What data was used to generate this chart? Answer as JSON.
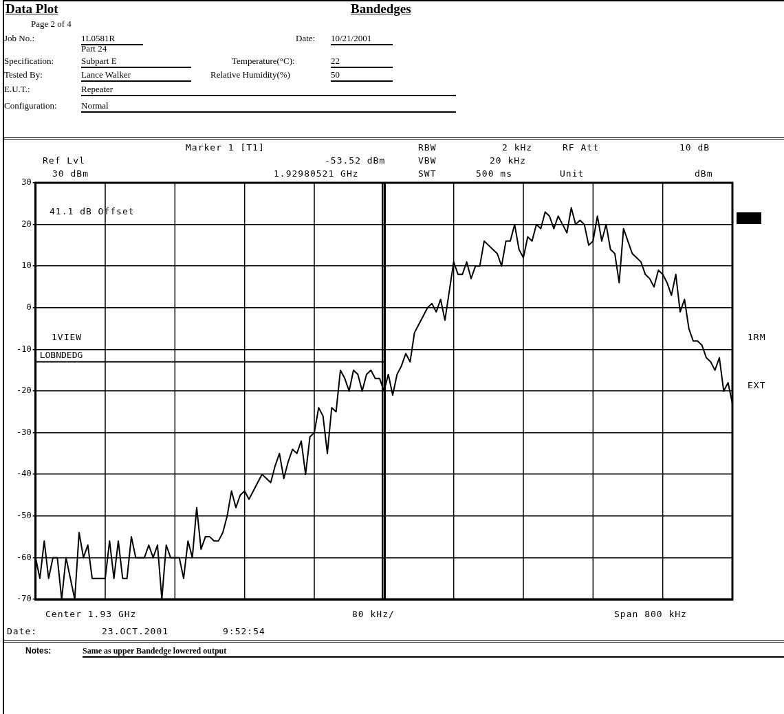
{
  "chart_data": {
    "type": "line",
    "title": "Data Plot",
    "subtitle": "Bandedges",
    "annotations": [
      "Page 2 of 4",
      "Job No.:",
      "1L0581R",
      "Date:",
      "10/21/2001",
      "Specification:",
      "Part 24",
      "Subpart E",
      "Temperature(°C):",
      "22",
      "Tested By:",
      "Lance Walker",
      "Relative Humidity(%)",
      "50",
      "E.U.T.:",
      "Repeater",
      "Configuration:",
      "Normal",
      "Marker 1 [T1]",
      "Ref Lvl",
      "-53.52 dBm",
      "30 dBm",
      "1.92980521 GHz",
      "RBW",
      "2 kHz",
      "VBW",
      "20 kHz",
      "SWT",
      "500 ms",
      "RF Att",
      "10 dB",
      "Unit",
      "dBm",
      "41.1 dB Offset",
      "1VIEW",
      "1RM",
      "EXT",
      "Center 1.93 GHz",
      "80 kHz/",
      "Span 800 kHz",
      "Date:",
      "23.OCT.2001",
      "9:52:54",
      "Notes:",
      "Same as upper Bandedge lowered output",
      {
        "text": "LOBNDEDG",
        "y": -13
      }
    ],
    "categories": [
      null,
      null,
      null,
      null,
      null,
      null,
      null,
      null,
      null,
      null,
      null,
      null,
      null,
      null,
      null,
      null,
      null,
      null,
      null,
      null,
      null,
      null,
      null,
      null,
      null,
      null,
      null,
      null,
      null,
      null,
      null,
      null,
      null,
      null,
      null,
      null,
      null,
      null,
      null,
      null,
      null,
      null,
      null,
      null,
      null,
      null,
      null,
      null,
      null,
      null,
      null,
      null,
      null,
      null,
      null,
      null,
      null,
      null,
      null,
      null,
      null,
      null,
      null,
      null,
      null,
      null,
      null,
      null,
      null,
      null,
      null,
      null,
      null,
      null,
      null,
      null,
      null,
      null,
      null,
      null,
      null,
      null,
      null,
      null,
      null,
      null,
      null,
      null,
      null,
      null,
      null,
      null,
      null,
      null,
      null,
      null,
      null,
      null,
      null,
      null,
      null,
      null,
      null,
      null,
      null,
      null,
      null,
      null,
      null,
      null,
      null,
      null,
      null,
      null,
      null,
      null,
      null,
      null,
      null,
      null,
      null,
      null,
      null,
      null,
      null,
      null,
      null,
      null,
      null,
      null,
      null,
      null,
      null,
      null,
      null,
      null,
      null,
      null,
      null,
      null,
      null,
      null,
      null,
      null,
      null,
      null,
      null,
      null,
      null,
      null,
      null,
      null,
      null,
      null,
      null,
      null,
      null,
      null,
      null,
      null,
      null
    ],
    "ylim": [
      -70,
      30
    ],
    "yticks": [
      -70,
      -60,
      -50,
      -40,
      -30,
      -20,
      -10,
      0,
      10,
      20,
      30
    ],
    "tick_labels": "y",
    "grid": true,
    "legend": false,
    "marker": "none",
    "line_style": "solid",
    "series": [
      {
        "color": "#000000",
        "values": [
          -60,
          -65,
          -56,
          -65,
          -60,
          -60,
          -70,
          -60,
          -65,
          -70,
          -54,
          -60,
          -57,
          -65,
          -65,
          -65,
          -65,
          -56,
          -65,
          -56,
          -65,
          -65,
          -55,
          -60,
          -60,
          -60,
          -57,
          -60,
          -57,
          -70,
          -57,
          -60,
          -60,
          -60,
          -65,
          -56,
          -60,
          -48,
          -58,
          -55,
          -55,
          -56,
          -56,
          -54,
          -50,
          -44,
          -48,
          -45,
          -44,
          -46,
          -44,
          -42,
          -40,
          -41,
          -42,
          -38,
          -35,
          -41,
          -37,
          -34,
          -35,
          -32,
          -40,
          -31,
          -30,
          -24,
          -26,
          -35,
          -24,
          -25,
          -15,
          -17,
          -20,
          -15,
          -16,
          -20,
          -16,
          -15,
          -17,
          -17,
          -20,
          -16,
          -21,
          -16,
          -14,
          -11,
          -13,
          -6,
          -4,
          -2,
          0,
          1,
          -1,
          2,
          -3,
          4,
          11,
          8,
          8,
          11,
          7,
          10,
          10,
          16,
          15,
          14,
          13,
          10,
          16,
          16,
          20,
          14,
          12,
          17,
          16,
          20,
          19,
          23,
          22,
          19,
          22,
          20,
          18,
          24,
          20,
          21,
          20,
          15,
          16,
          22,
          16,
          20,
          14,
          13,
          6,
          19,
          16,
          13,
          12,
          11,
          8,
          7,
          5,
          9,
          8,
          6,
          3,
          8,
          -1,
          2,
          -5,
          -8,
          -8,
          -9,
          -12,
          -13,
          -15,
          -12,
          -20,
          -18,
          -23
        ]
      },
      {
        "color": "#000000",
        "values": [
          -13,
          -13,
          -13,
          -13,
          -13,
          -13,
          -13,
          -13,
          -13,
          -13,
          -13,
          -13,
          -13,
          -13,
          -13,
          -13,
          -13,
          -13,
          -13,
          -13,
          -13,
          -13,
          -13,
          -13,
          -13,
          -13,
          -13,
          -13,
          -13,
          -13,
          -13,
          -13,
          -13,
          -13,
          -13,
          -13,
          -13,
          -13,
          -13,
          -13,
          -13,
          -13,
          -13,
          -13,
          -13,
          -13,
          -13,
          -13,
          -13,
          -13,
          -13,
          -13,
          -13,
          -13,
          -13,
          -13,
          -13,
          -13,
          -13,
          -13,
          -13,
          -13,
          -13,
          -13,
          -13,
          -13,
          -13,
          -13,
          -13,
          -13,
          -13,
          -13,
          -13,
          -13,
          -13,
          -13,
          -13,
          -13,
          -13,
          -13,
          -13,
          null,
          null,
          null,
          null,
          null,
          null,
          null,
          null,
          null,
          null,
          null,
          null,
          null,
          null,
          null,
          null,
          null,
          null,
          null,
          null,
          null,
          null,
          null,
          null,
          null,
          null,
          null,
          null,
          null,
          null,
          null,
          null,
          null,
          null,
          null,
          null,
          null,
          null,
          null,
          null,
          null,
          null,
          null,
          null,
          null,
          null,
          null,
          null,
          null,
          null,
          null,
          null,
          null,
          null,
          null,
          null,
          null,
          null,
          null,
          null,
          null,
          null,
          null,
          null,
          null,
          null,
          null,
          null,
          null,
          null,
          null,
          null,
          null,
          null,
          null,
          null,
          null,
          null,
          null,
          null
        ]
      }
    ]
  }
}
